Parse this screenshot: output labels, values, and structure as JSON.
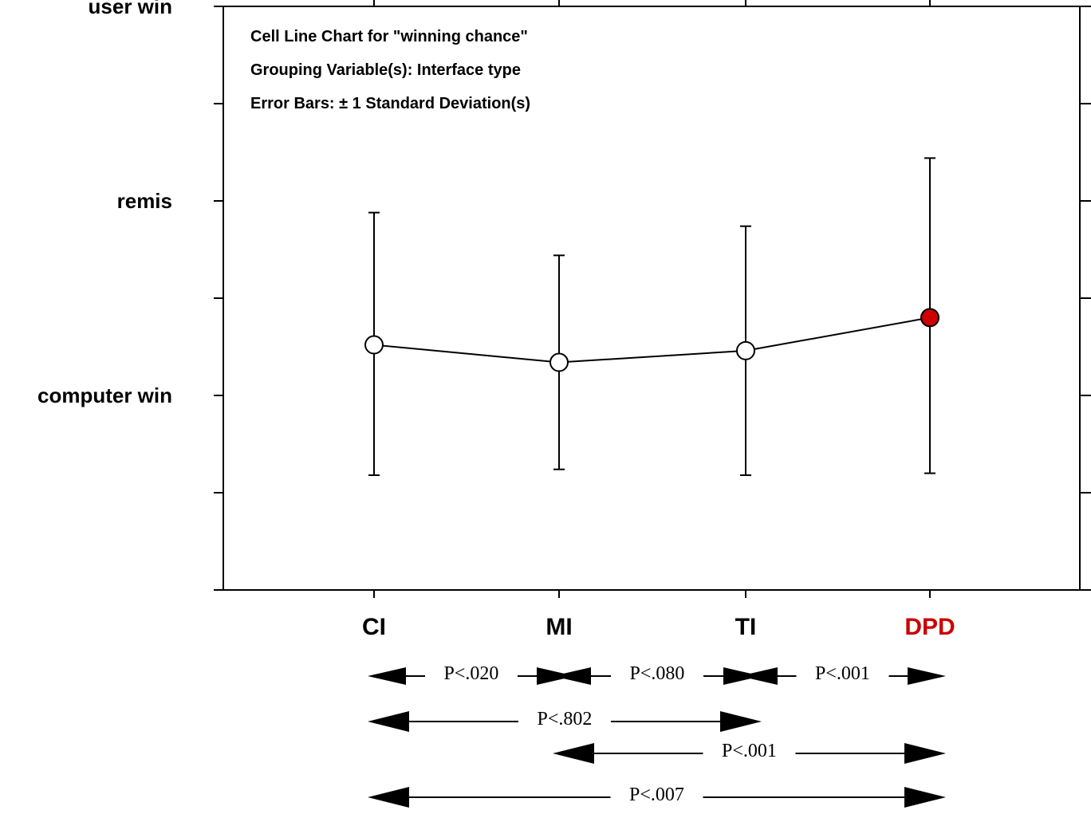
{
  "chart_data": {
    "type": "line",
    "notes": [
      "Cell Line Chart for \"winning chance\"",
      "Grouping Variable(s): Interface type",
      "Error Bars: ± 1 Standard Deviation(s)"
    ],
    "categories": [
      "CI",
      "MI",
      "TI",
      "DPD"
    ],
    "y_tick_labels": [
      "computer win",
      "remis",
      "user win"
    ],
    "y_tick_values": [
      0,
      1,
      2
    ],
    "ylim": [
      -1,
      2
    ],
    "series": [
      {
        "values": [
          0.26,
          0.17,
          0.23,
          0.4
        ],
        "error_low": [
          -0.41,
          -0.38,
          -0.41,
          -0.4
        ],
        "error_high": [
          0.94,
          0.72,
          0.87,
          1.22
        ],
        "markers": [
          "open",
          "open",
          "open",
          "filled"
        ]
      }
    ],
    "highlight": {
      "category": "DPD",
      "color": "#cc0000"
    },
    "grid": false,
    "comparisons": [
      {
        "from": "CI",
        "to": "MI",
        "label": "P<.020"
      },
      {
        "from": "MI",
        "to": "TI",
        "label": "P<.080"
      },
      {
        "from": "TI",
        "to": "DPD",
        "label": "P<.001"
      },
      {
        "from": "CI",
        "to": "TI",
        "label": "P<.802"
      },
      {
        "from": "MI",
        "to": "DPD",
        "label": "P<.001"
      },
      {
        "from": "CI",
        "to": "DPD",
        "label": "P<.007"
      }
    ]
  }
}
